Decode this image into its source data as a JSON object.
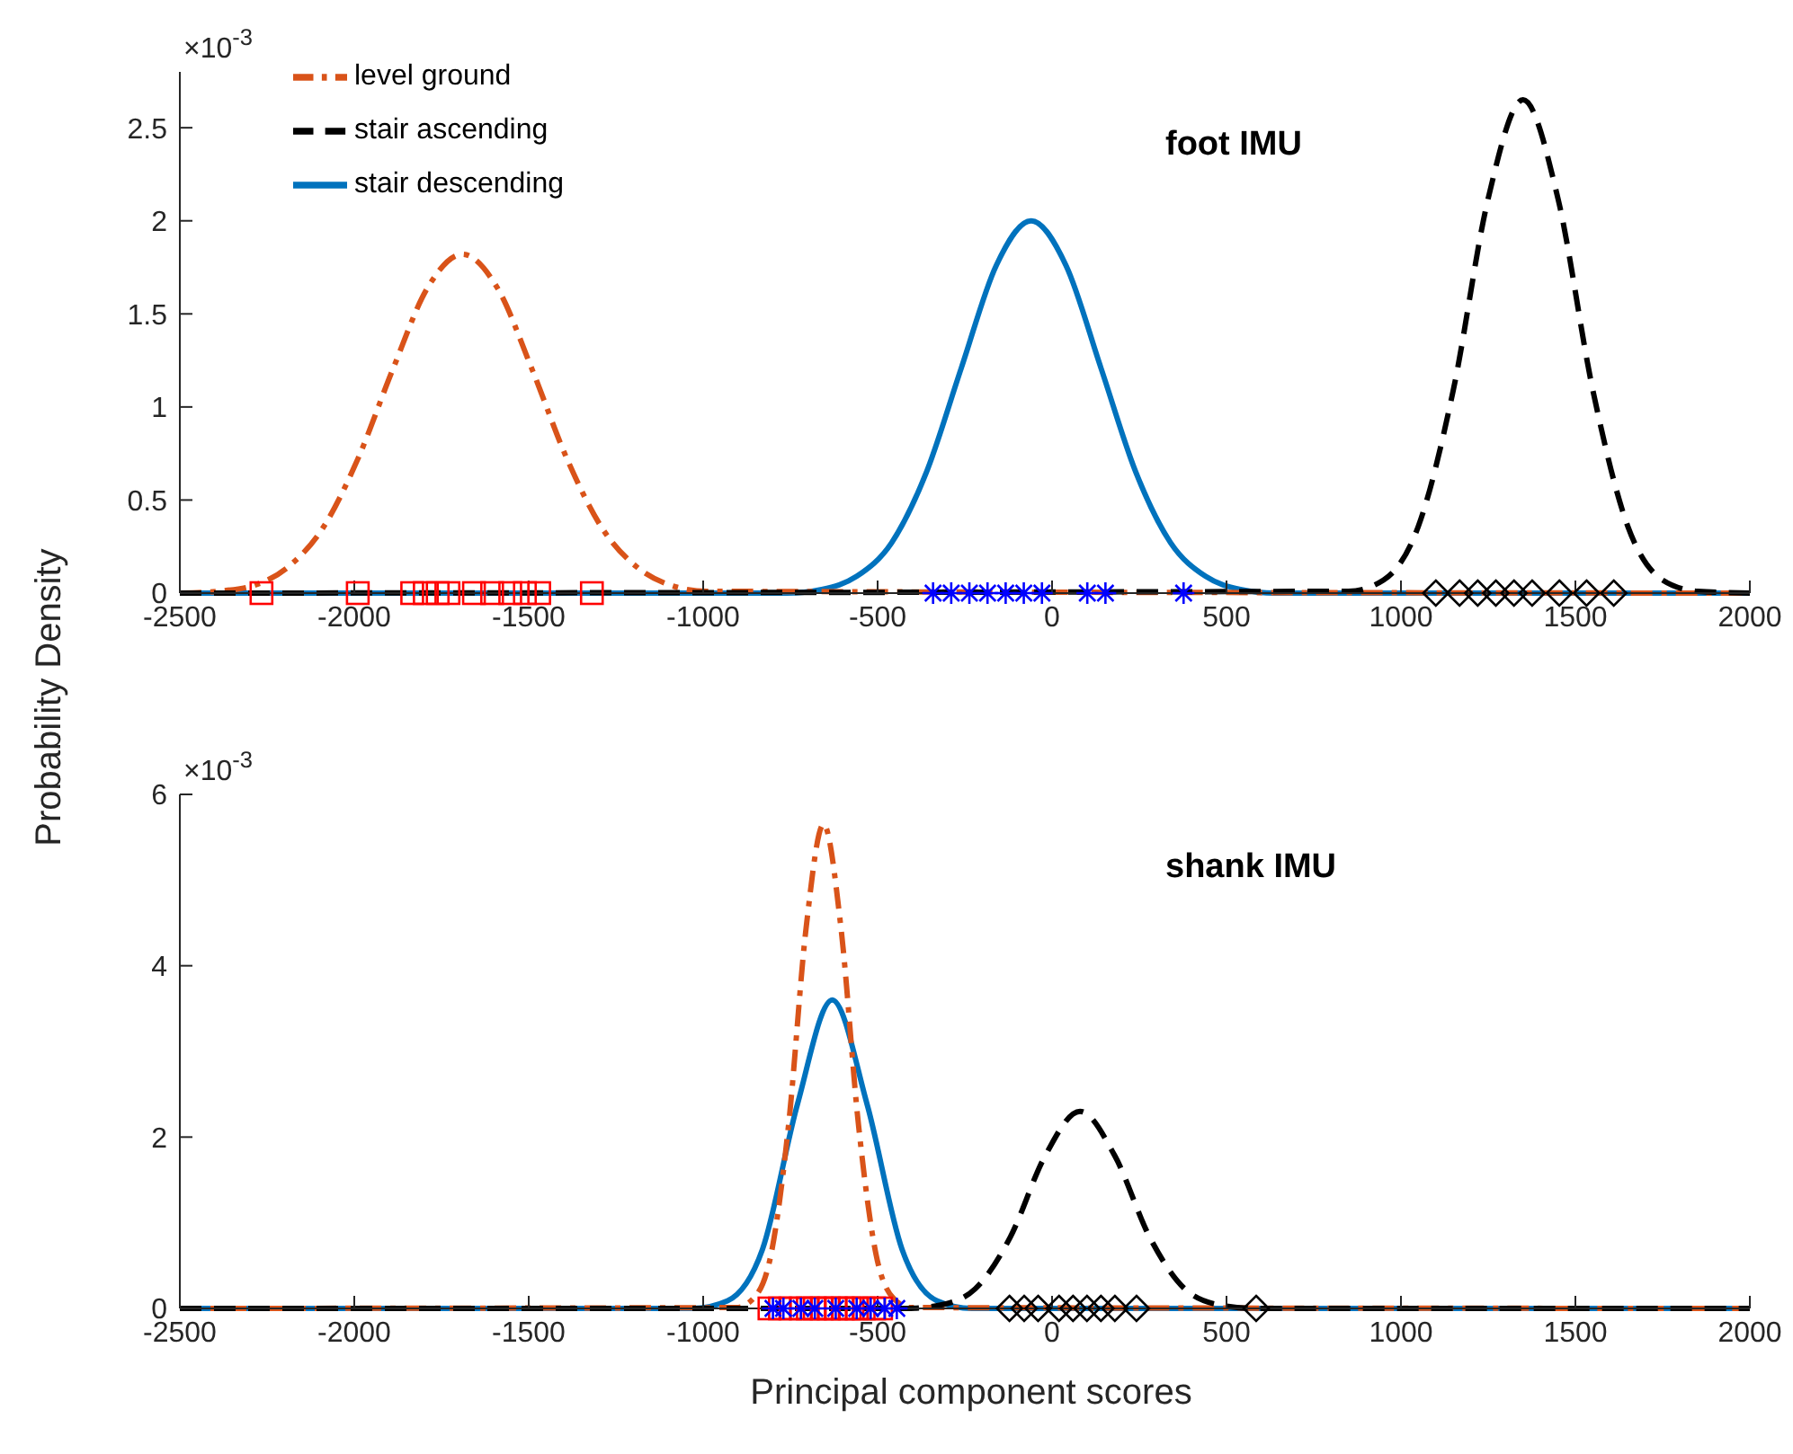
{
  "chart_data": [
    {
      "type": "line",
      "title": "foot IMU",
      "ylabel": "Probability Density",
      "annotations": [
        "×10$^{-3}$"
      ],
      "xlim": [
        -2500,
        2000
      ],
      "xticks": [
        -2500,
        -2000,
        -1500,
        -1000,
        -500,
        0,
        500,
        1000,
        1500,
        2000
      ],
      "ylim": [
        0,
        2.8
      ],
      "yticks": [
        0,
        0.5,
        1,
        1.5,
        2,
        2.5
      ],
      "grid": false,
      "legend": "top left",
      "marker": "none",
      "series": [
        {
          "name": "stair descending",
          "color": "#0072bd",
          "line_style": "solid",
          "x": [
            -2500,
            -760,
            -660,
            -560,
            -460,
            -360,
            -260,
            -160,
            -60,
            40,
            140,
            240,
            340,
            440,
            540,
            640,
            2000
          ],
          "values": [
            0,
            0,
            0.02,
            0.09,
            0.27,
            0.65,
            1.21,
            1.76,
            2.0,
            1.76,
            1.21,
            0.65,
            0.27,
            0.09,
            0.02,
            0,
            0
          ]
        },
        {
          "name": "level ground",
          "color": "#d95319",
          "line_style": "dashdot",
          "x": [
            -2500,
            -2390,
            -2290,
            -2190,
            -2090,
            -1990,
            -1890,
            -1790,
            -1690,
            -1590,
            -1490,
            -1390,
            -1290,
            -1190,
            -1090,
            -990,
            2000
          ],
          "values": [
            0,
            0.01,
            0.04,
            0.14,
            0.35,
            0.72,
            1.2,
            1.64,
            1.82,
            1.64,
            1.2,
            0.72,
            0.35,
            0.14,
            0.04,
            0.01,
            0
          ]
        },
        {
          "name": "stair ascending",
          "color": "#000000",
          "line_style": "dashed",
          "x": [
            -2500,
            850,
            950,
            1050,
            1150,
            1250,
            1350,
            1450,
            1550,
            1650,
            1750,
            1850,
            2000
          ],
          "values": [
            0,
            0.01,
            0.07,
            0.36,
            1.09,
            2.12,
            2.65,
            2.12,
            1.09,
            0.36,
            0.07,
            0.01,
            0
          ]
        },
        {
          "type": "scatter",
          "color": "#ff0000",
          "marker": "square",
          "x": [
            -2266,
            -1990,
            -1834,
            -1798,
            -1761,
            -1730,
            -1657,
            -1605,
            -1553,
            -1511,
            -1470,
            -1319
          ],
          "values": [
            0,
            0,
            0,
            0,
            0,
            0,
            0,
            0,
            0,
            0,
            0,
            0
          ]
        },
        {
          "type": "scatter",
          "color": "#0000ff",
          "marker": "cross",
          "x": [
            -341,
            -289,
            -237,
            -185,
            -133,
            -81,
            -29,
            101,
            153,
            377
          ],
          "values": [
            0,
            0,
            0,
            0,
            0,
            0,
            0,
            0,
            0,
            0
          ]
        },
        {
          "type": "scatter",
          "color": "#000000",
          "marker": "diamond",
          "x": [
            1100,
            1168,
            1220,
            1272,
            1324,
            1376,
            1454,
            1532,
            1610
          ],
          "values": [
            0,
            0,
            0,
            0,
            0,
            0,
            0,
            0,
            0
          ]
        }
      ]
    },
    {
      "type": "line",
      "title": "shank IMU",
      "xlabel": "Principal component scores",
      "annotations": [
        "×10$^{-3}$"
      ],
      "xlim": [
        -2500,
        2000
      ],
      "xticks": [
        -2500,
        -2000,
        -1500,
        -1000,
        -500,
        0,
        500,
        1000,
        1500,
        2000
      ],
      "ylim": [
        0,
        6
      ],
      "yticks": [
        0,
        2,
        4,
        6
      ],
      "grid": false,
      "legend": false,
      "marker": "none",
      "series": [
        {
          "color": "#0072bd",
          "line_style": "solid",
          "x": [
            -2500,
            -1030,
            -930,
            -830,
            -730,
            -630,
            -530,
            -430,
            -330,
            -230,
            2000
          ],
          "values": [
            0,
            0,
            0.09,
            0.69,
            2.38,
            3.6,
            2.38,
            0.69,
            0.09,
            0,
            0
          ]
        },
        {
          "color": "#d95319",
          "line_style": "dashdot",
          "x": [
            -2500,
            -905,
            -855,
            -805,
            -755,
            -705,
            -655,
            -605,
            -555,
            -505,
            -455,
            -405,
            2000
          ],
          "values": [
            0,
            0.01,
            0.12,
            0.64,
            2.15,
            4.44,
            5.65,
            4.44,
            2.15,
            0.64,
            0.12,
            0.01,
            0
          ]
        },
        {
          "color": "#000000",
          "line_style": "dashed",
          "x": [
            -2500,
            -420,
            -320,
            -220,
            -120,
            -20,
            80,
            180,
            280,
            380,
            480,
            580,
            2000
          ],
          "values": [
            0,
            0,
            0.04,
            0.23,
            0.83,
            1.78,
            2.3,
            1.78,
            0.83,
            0.23,
            0.04,
            0,
            0
          ]
        },
        {
          "type": "scatter",
          "color": "#ff0000",
          "marker": "square",
          "x": [
            -810,
            -780,
            -750,
            -720,
            -700,
            -680,
            -660,
            -640,
            -620,
            -600,
            -580,
            -560,
            -540,
            -510,
            -490
          ],
          "values": [
            0,
            0,
            0,
            0,
            0,
            0,
            0,
            0,
            0,
            0,
            0,
            0,
            0,
            0,
            0
          ]
        },
        {
          "type": "scatter",
          "color": "#0000ff",
          "marker": "cross",
          "x": [
            -800,
            -770,
            -720,
            -680,
            -620,
            -560,
            -520,
            -480,
            -445
          ],
          "values": [
            0,
            0,
            0,
            0,
            0,
            0,
            0,
            0,
            0
          ]
        },
        {
          "type": "scatter",
          "color": "#000000",
          "marker": "diamond",
          "x": [
            -122,
            -80,
            -40,
            20,
            60,
            100,
            140,
            180,
            242,
            585
          ],
          "values": [
            0,
            0,
            0,
            0,
            0,
            0,
            0,
            0,
            0,
            0
          ]
        }
      ]
    }
  ]
}
